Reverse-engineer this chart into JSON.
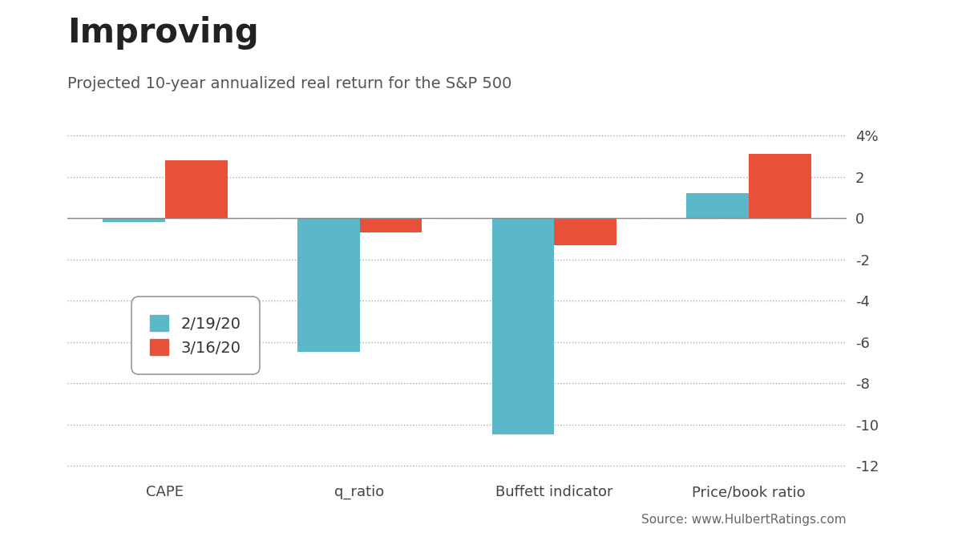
{
  "title": "Improving",
  "subtitle": "Projected 10-year annualized real return for the S&P 500",
  "source": "Source: www.HulbertRatings.com",
  "categories": [
    "CAPE",
    "q_ratio",
    "Buffett indicator",
    "Price/book ratio"
  ],
  "series": [
    {
      "label": "2/19/20",
      "color": "#5BB8C8",
      "values": [
        -0.2,
        -6.5,
        -10.5,
        1.2
      ]
    },
    {
      "label": "3/16/20",
      "color": "#E8503A",
      "values": [
        2.8,
        -0.7,
        -1.3,
        3.1
      ]
    }
  ],
  "ylim": [
    -12.5,
    4.8
  ],
  "yticks": [
    -12,
    -10,
    -8,
    -6,
    -4,
    -2,
    0,
    2,
    4
  ],
  "ytick_labels": [
    "-12",
    "-10",
    "-8",
    "-6",
    "-4",
    "-2",
    "0",
    "2",
    "4%"
  ],
  "bar_width": 0.32,
  "background_color": "#FFFFFF",
  "grid_color": "#AAAAAA",
  "title_fontsize": 30,
  "subtitle_fontsize": 14,
  "tick_fontsize": 13,
  "legend_fontsize": 14,
  "source_fontsize": 11,
  "axis_label_color": "#444444",
  "grid_linestyle": ":"
}
